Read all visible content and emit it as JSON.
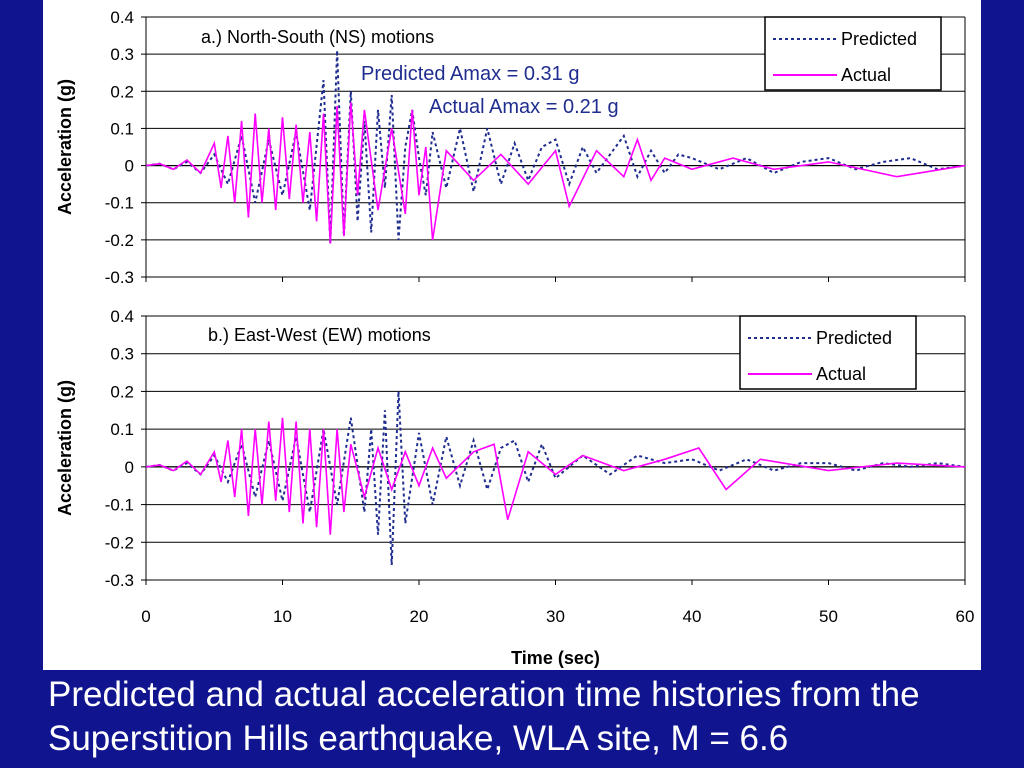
{
  "slide": {
    "background_color": "#10158f",
    "caption": "Predicted and actual acceleration time histories from the Superstition Hills earthquake, WLA site, M = 6.6"
  },
  "chart_data": [
    {
      "type": "line",
      "title": "a.) North-South (NS) motions",
      "xlabel": "",
      "ylabel": "Acceleration (g)",
      "xlim": [
        0,
        60
      ],
      "ylim": [
        -0.3,
        0.4
      ],
      "yticks": [
        "0.4",
        "0.3",
        "0.2",
        "0.1",
        "0",
        "-0.1",
        "-0.2",
        "-0.3"
      ],
      "yticks_values": [
        0.4,
        0.3,
        0.2,
        0.1,
        0,
        -0.1,
        -0.2,
        -0.3
      ],
      "grid": true,
      "legend": "top-right",
      "annotations": [
        "Predicted Amax = 0.31 g",
        "Actual Amax = 0.21 g"
      ],
      "series": [
        {
          "name": "Predicted",
          "color": "#1f2d8f",
          "dash": "dotted",
          "x": [
            0,
            1,
            2,
            3,
            4,
            5,
            6,
            7,
            8,
            9,
            10,
            11,
            12,
            13,
            13.5,
            14,
            14.5,
            15,
            15.5,
            16,
            16.5,
            17,
            17.5,
            18,
            18.5,
            19,
            19.5,
            20,
            20.5,
            21,
            22,
            23,
            24,
            25,
            26,
            27,
            28,
            29,
            30,
            31,
            32,
            33,
            34,
            35,
            36,
            37,
            38,
            39,
            40,
            42,
            44,
            46,
            48,
            50,
            52,
            54,
            56,
            58,
            60
          ],
          "y": [
            0,
            0.005,
            -0.01,
            0.01,
            -0.02,
            0.03,
            -0.05,
            0.08,
            -0.1,
            0.07,
            -0.08,
            0.09,
            -0.12,
            0.23,
            -0.21,
            0.31,
            -0.19,
            0.2,
            -0.15,
            0.12,
            -0.18,
            0.15,
            -0.06,
            0.19,
            -0.2,
            0.05,
            0.15,
            0.02,
            -0.08,
            0.09,
            -0.06,
            0.1,
            -0.07,
            0.1,
            -0.05,
            0.06,
            -0.04,
            0.05,
            0.07,
            -0.05,
            0.05,
            -0.02,
            0.03,
            0.08,
            -0.03,
            0.04,
            -0.02,
            0.03,
            0.02,
            -0.01,
            0.02,
            -0.02,
            0.01,
            0.02,
            -0.01,
            0.01,
            0.02,
            -0.01,
            0.0
          ]
        },
        {
          "name": "Actual",
          "color": "#ff00ff",
          "dash": "solid",
          "x": [
            0,
            1,
            2,
            3,
            4,
            5,
            5.5,
            6,
            6.5,
            7,
            7.5,
            8,
            8.5,
            9,
            9.5,
            10,
            10.5,
            11,
            11.5,
            12,
            12.5,
            13,
            13.5,
            14,
            14.5,
            15,
            15.5,
            16,
            17,
            18,
            19,
            19.5,
            20,
            20.5,
            21,
            22,
            24,
            26,
            28,
            30,
            31,
            33,
            35,
            36,
            37,
            38,
            40,
            43,
            46,
            50,
            55,
            60
          ],
          "y": [
            0,
            0.005,
            -0.01,
            0.015,
            -0.02,
            0.06,
            -0.06,
            0.08,
            -0.1,
            0.12,
            -0.14,
            0.14,
            -0.1,
            0.1,
            -0.12,
            0.13,
            -0.09,
            0.11,
            -0.1,
            0.09,
            -0.15,
            0.14,
            -0.21,
            0.16,
            -0.19,
            0.17,
            -0.08,
            0.15,
            -0.12,
            0.1,
            -0.13,
            0.15,
            -0.08,
            0.05,
            -0.2,
            0.04,
            -0.04,
            0.03,
            -0.05,
            0.04,
            -0.11,
            0.04,
            -0.03,
            0.07,
            -0.04,
            0.02,
            -0.01,
            0.02,
            -0.01,
            0.01,
            -0.03,
            0.0
          ]
        }
      ]
    },
    {
      "type": "line",
      "title": "b.) East-West (EW) motions",
      "xlabel": "Time (sec)",
      "ylabel": "Acceleration (g)",
      "xlim": [
        0,
        60
      ],
      "ylim": [
        -0.3,
        0.4
      ],
      "xticks": [
        "0",
        "10",
        "20",
        "30",
        "40",
        "50",
        "60"
      ],
      "xticks_values": [
        0,
        10,
        20,
        30,
        40,
        50,
        60
      ],
      "yticks": [
        "0.4",
        "0.3",
        "0.2",
        "0.1",
        "0",
        "-0.1",
        "-0.2",
        "-0.3"
      ],
      "yticks_values": [
        0.4,
        0.3,
        0.2,
        0.1,
        0,
        -0.1,
        -0.2,
        -0.3
      ],
      "grid": true,
      "legend": "top-right",
      "series": [
        {
          "name": "Predicted",
          "color": "#1f2d8f",
          "dash": "dotted",
          "x": [
            0,
            1,
            2,
            3,
            4,
            5,
            6,
            7,
            8,
            9,
            10,
            11,
            12,
            13,
            14,
            15,
            16,
            16.5,
            17,
            17.5,
            18,
            18.5,
            19,
            20,
            21,
            22,
            23,
            24,
            25,
            26,
            27,
            28,
            29,
            30,
            32,
            34,
            36,
            38,
            40,
            42,
            44,
            46,
            48,
            50,
            52,
            54,
            56,
            58,
            60
          ],
          "y": [
            0,
            0.005,
            -0.01,
            0.01,
            -0.02,
            0.03,
            -0.04,
            0.06,
            -0.08,
            0.07,
            -0.09,
            0.08,
            -0.12,
            0.1,
            -0.1,
            0.13,
            -0.12,
            0.1,
            -0.18,
            0.15,
            -0.26,
            0.2,
            -0.15,
            0.09,
            -0.1,
            0.08,
            -0.05,
            0.07,
            -0.06,
            0.05,
            0.07,
            -0.04,
            0.06,
            -0.03,
            0.03,
            -0.02,
            0.03,
            0.01,
            0.02,
            -0.01,
            0.02,
            -0.01,
            0.01,
            0.01,
            -0.01,
            0.01,
            0.0,
            0.01,
            0.0
          ]
        },
        {
          "name": "Actual",
          "color": "#ff00ff",
          "dash": "solid",
          "x": [
            0,
            1,
            2,
            3,
            4,
            5,
            5.5,
            6,
            6.5,
            7,
            7.5,
            8,
            8.5,
            9,
            9.5,
            10,
            10.5,
            11,
            11.5,
            12,
            12.5,
            13,
            13.5,
            14,
            14.5,
            15,
            16,
            17,
            18,
            19,
            20,
            21,
            22,
            24,
            25.5,
            26.5,
            28,
            30,
            32,
            35,
            38,
            40.5,
            42.5,
            45,
            50,
            55,
            60
          ],
          "y": [
            0,
            0.005,
            -0.01,
            0.015,
            -0.02,
            0.04,
            -0.04,
            0.07,
            -0.08,
            0.1,
            -0.13,
            0.1,
            -0.1,
            0.12,
            -0.09,
            0.13,
            -0.12,
            0.12,
            -0.15,
            0.1,
            -0.16,
            0.1,
            -0.18,
            0.1,
            -0.12,
            0.06,
            -0.08,
            0.05,
            -0.06,
            0.04,
            -0.05,
            0.05,
            -0.03,
            0.04,
            0.06,
            -0.14,
            0.04,
            -0.02,
            0.03,
            -0.01,
            0.02,
            0.05,
            -0.06,
            0.02,
            -0.01,
            0.01,
            0.0
          ]
        }
      ]
    }
  ]
}
